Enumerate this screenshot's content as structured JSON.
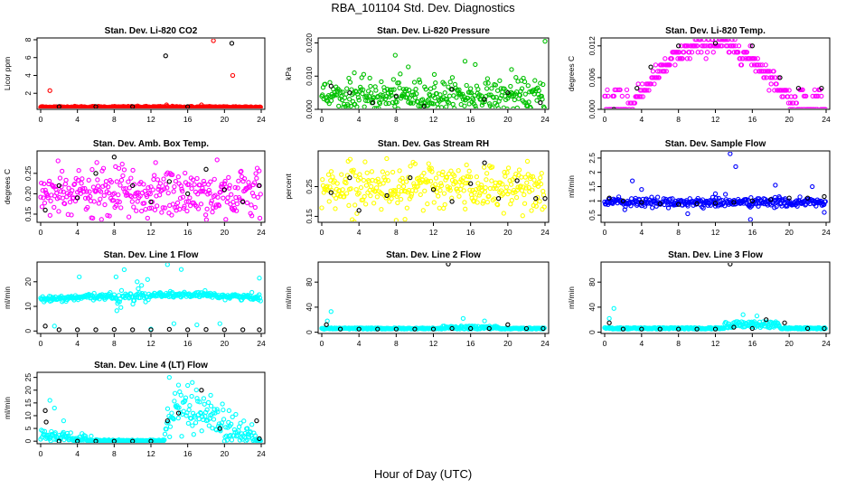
{
  "page": {
    "title": "RBA_101104  Std. Dev. Diagnostics",
    "xlabel": "Hour of Day (UTC)"
  },
  "chart_data": [
    {
      "type": "scatter",
      "title": "Stan. Dev. Li-820 CO2",
      "ylabel": "Licor ppm",
      "xlim": [
        0,
        24
      ],
      "xticks": [
        0,
        4,
        8,
        12,
        16,
        20,
        24
      ],
      "ylim": [
        0.2,
        8.2
      ],
      "yticks": [
        2,
        4,
        6,
        8
      ],
      "ytick_labels": [
        "2",
        "4",
        "6",
        "8"
      ],
      "main_color": "#ff0000",
      "noise": 0.0,
      "base": 0.45,
      "amp": 0.0,
      "series": [
        {
          "name": "",
          "color": "#ff0000",
          "values": [
            [
              1.0,
              2.3
            ],
            [
              18.8,
              7.9
            ],
            [
              20.9,
              4.0
            ],
            [
              13.7,
              0.7
            ],
            [
              17.5,
              0.7
            ]
          ]
        },
        {
          "name": "",
          "color": "#000000",
          "values": [
            [
              13.6,
              6.2
            ],
            [
              20.8,
              7.6
            ],
            [
              2.0,
              0.5
            ],
            [
              6.0,
              0.5
            ],
            [
              10.0,
              0.5
            ],
            [
              16.0,
              0.5
            ]
          ]
        }
      ]
    },
    {
      "type": "scatter",
      "title": "Stan. Dev. Li-820 Pressure",
      "ylabel": "kPa",
      "xlim": [
        0,
        24
      ],
      "xticks": [
        0,
        4,
        8,
        12,
        16,
        20,
        24
      ],
      "ylim": [
        0.0,
        0.0215
      ],
      "yticks": [
        0,
        0.01,
        0.02
      ],
      "ytick_labels": [
        "0.000",
        "0.010",
        "0.020"
      ],
      "main_color": "#00c000",
      "noise": 0.0022,
      "base": 0.0045,
      "amp": 0.0,
      "series": [
        {
          "name": "",
          "color": "#00c000",
          "values": [
            [
              24.0,
              0.0205
            ],
            [
              7.9,
              0.0163
            ],
            [
              15.4,
              0.0145
            ],
            [
              16.5,
              0.0135
            ],
            [
              9.3,
              0.0128
            ],
            [
              3.5,
              0.011
            ],
            [
              12.1,
              0.0105
            ],
            [
              20.4,
              0.012
            ]
          ]
        },
        {
          "name": "",
          "color": "#000000",
          "values": [
            [
              1.0,
              0.007
            ],
            [
              3.0,
              0.005
            ],
            [
              5.5,
              0.002
            ],
            [
              8.0,
              0.004
            ],
            [
              11.0,
              0.001
            ],
            [
              14.0,
              0.006
            ],
            [
              17.5,
              0.003
            ],
            [
              20.0,
              0.005
            ],
            [
              23.5,
              0.002
            ]
          ]
        }
      ]
    },
    {
      "type": "scatter",
      "title": "Stan. Dev. Li-820 Temp.",
      "ylabel": "degrees C",
      "xlim": [
        0,
        24
      ],
      "xticks": [
        0,
        4,
        8,
        12,
        16,
        20,
        24
      ],
      "ylim": [
        0.0,
        0.0135
      ],
      "yticks": [
        0,
        0.006,
        0.012
      ],
      "ytick_labels": [
        "0.000",
        "0.006",
        "0.012"
      ],
      "main_color": "#ff00ff",
      "noise": 0.0008,
      "base": 0.0,
      "amp": 0.0,
      "series": [
        {
          "name": "",
          "color": "#000000",
          "values": [
            [
              1.0,
              0.0
            ],
            [
              3.5,
              0.004
            ],
            [
              5.0,
              0.008
            ],
            [
              8.0,
              0.012
            ],
            [
              12.0,
              0.0125
            ],
            [
              16.0,
              0.012
            ],
            [
              19.0,
              0.006
            ],
            [
              21.0,
              0.004
            ],
            [
              23.5,
              0.004
            ]
          ]
        }
      ]
    },
    {
      "type": "scatter",
      "title": "Stan. Dev. Amb. Box Temp.",
      "ylabel": "degrees C",
      "xlim": [
        0,
        24
      ],
      "xticks": [
        0,
        4,
        8,
        12,
        16,
        20,
        24
      ],
      "ylim": [
        0.13,
        0.305
      ],
      "yticks": [
        0.15,
        0.2,
        0.25
      ],
      "ytick_labels": [
        "0.15",
        "0.20",
        "0.25"
      ],
      "main_color": "#ff00ff",
      "noise": 0.03,
      "base": 0.2,
      "amp": 0.0,
      "series": [
        {
          "name": "",
          "color": "#000000",
          "values": [
            [
              0.5,
              0.16
            ],
            [
              2.0,
              0.22
            ],
            [
              4.0,
              0.19
            ],
            [
              6.0,
              0.25
            ],
            [
              8.0,
              0.29
            ],
            [
              10.0,
              0.22
            ],
            [
              12.0,
              0.18
            ],
            [
              14.0,
              0.23
            ],
            [
              16.0,
              0.2
            ],
            [
              18.0,
              0.26
            ],
            [
              20.0,
              0.21
            ],
            [
              22.0,
              0.18
            ],
            [
              23.8,
              0.22
            ]
          ]
        }
      ]
    },
    {
      "type": "scatter",
      "title": "Stan. Dev. Gas Stream RH",
      "ylabel": "percent",
      "xlim": [
        0,
        24
      ],
      "xticks": [
        0,
        4,
        8,
        12,
        16,
        20,
        24
      ],
      "ylim": [
        0.13,
        0.37
      ],
      "yticks": [
        0.15,
        0.25
      ],
      "ytick_labels": [
        "0.15",
        "0.25"
      ],
      "main_color": "#ffff00",
      "noise": 0.04,
      "base": 0.25,
      "amp": 0.0,
      "series": [
        {
          "name": "",
          "color": "#000000",
          "values": [
            [
              1.0,
              0.23
            ],
            [
              3.0,
              0.28
            ],
            [
              4.0,
              0.17
            ],
            [
              7.0,
              0.22
            ],
            [
              9.5,
              0.28
            ],
            [
              12.0,
              0.24
            ],
            [
              14.0,
              0.2
            ],
            [
              16.0,
              0.26
            ],
            [
              17.5,
              0.33
            ],
            [
              19.0,
              0.21
            ],
            [
              21.0,
              0.27
            ],
            [
              23.0,
              0.21
            ],
            [
              24.0,
              0.21
            ]
          ]
        }
      ]
    },
    {
      "type": "scatter",
      "title": "Stan. Dev. Sample Flow",
      "ylabel": "ml/min",
      "xlim": [
        0,
        24
      ],
      "xticks": [
        0,
        4,
        8,
        12,
        16,
        20,
        24
      ],
      "ylim": [
        0.25,
        2.75
      ],
      "yticks": [
        0.5,
        1.0,
        1.5,
        2.0,
        2.5
      ],
      "ytick_labels": [
        "0.5",
        "1",
        "1.5",
        "2",
        "2.5"
      ],
      "main_color": "#0000ff",
      "noise": 0.08,
      "base": 0.95,
      "amp": 0.0,
      "series": [
        {
          "name": "",
          "color": "#0000ff",
          "values": [
            [
              3.0,
              1.7
            ],
            [
              13.6,
              2.65
            ],
            [
              14.2,
              2.2
            ],
            [
              15.8,
              0.35
            ],
            [
              22.5,
              1.5
            ],
            [
              4.0,
              1.4
            ],
            [
              12.0,
              1.25
            ],
            [
              18.5,
              1.55
            ],
            [
              23.8,
              0.6
            ],
            [
              9.0,
              0.55
            ]
          ]
        },
        {
          "name": "",
          "color": "#000000",
          "values": [
            [
              0.5,
              1.1
            ],
            [
              2.0,
              1.0
            ],
            [
              4.0,
              0.95
            ],
            [
              6.0,
              0.9
            ],
            [
              8.0,
              0.88
            ],
            [
              10.0,
              0.9
            ],
            [
              12.0,
              0.92
            ],
            [
              14.0,
              0.95
            ],
            [
              16.0,
              1.0
            ],
            [
              18.0,
              1.05
            ],
            [
              20.0,
              1.1
            ],
            [
              22.0,
              1.1
            ],
            [
              23.8,
              1.15
            ]
          ]
        }
      ]
    },
    {
      "type": "scatter",
      "title": "Stan. Dev. Line 1 Flow",
      "ylabel": "ml/min",
      "xlim": [
        0,
        24
      ],
      "xticks": [
        0,
        4,
        8,
        12,
        16,
        20,
        24
      ],
      "ylim": [
        -1,
        28
      ],
      "yticks": [
        0,
        10,
        20
      ],
      "ytick_labels": [
        "0",
        "10",
        "20"
      ],
      "main_color": "#00ffff",
      "noise": 0.8,
      "base": 13.5,
      "amp": 1.5,
      "series": [
        {
          "name": "",
          "color": "#00ffff",
          "values": [
            [
              8.2,
              22
            ],
            [
              13.8,
              27
            ],
            [
              15.3,
              25
            ],
            [
              4.2,
              22
            ],
            [
              10.5,
              20
            ],
            [
              23.8,
              21.5
            ],
            [
              1.5,
              2
            ],
            [
              12.0,
              0.8
            ],
            [
              14.5,
              3
            ],
            [
              17.0,
              2.5
            ],
            [
              19.5,
              3
            ]
          ]
        },
        {
          "name": "",
          "color": "#000000",
          "values": [
            [
              0.5,
              2.0
            ],
            [
              2.0,
              0.5
            ],
            [
              4.0,
              0.5
            ],
            [
              6.0,
              0.5
            ],
            [
              8.0,
              0.6
            ],
            [
              10.0,
              0.5
            ],
            [
              12.0,
              0.5
            ],
            [
              14.0,
              0.7
            ],
            [
              16.0,
              0.5
            ],
            [
              18.0,
              0.6
            ],
            [
              20.0,
              0.5
            ],
            [
              22.0,
              0.5
            ],
            [
              23.8,
              0.5
            ]
          ]
        }
      ]
    },
    {
      "type": "scatter",
      "title": "Stan. Dev. Line 2 Flow",
      "ylabel": "ml/min",
      "xlim": [
        0,
        24
      ],
      "xticks": [
        0,
        4,
        8,
        12,
        16,
        20,
        24
      ],
      "ylim": [
        -2,
        112
      ],
      "yticks": [
        0,
        40,
        80
      ],
      "ytick_labels": [
        "0",
        "40",
        "80"
      ],
      "main_color": "#00ffff",
      "noise": 1.5,
      "base": 5,
      "amp": 4,
      "series": [
        {
          "name": "",
          "color": "#00ffff",
          "values": [
            [
              1.0,
              33
            ],
            [
              0.6,
              18
            ],
            [
              15.2,
              22
            ],
            [
              17.5,
              18
            ]
          ]
        },
        {
          "name": "",
          "color": "#000000",
          "values": [
            [
              13.6,
              109
            ],
            [
              0.5,
              12
            ],
            [
              2.0,
              5
            ],
            [
              4.0,
              5
            ],
            [
              6.0,
              5
            ],
            [
              8.0,
              5
            ],
            [
              10.0,
              5
            ],
            [
              12.0,
              5
            ],
            [
              14.0,
              6
            ],
            [
              16.0,
              6
            ],
            [
              18.0,
              6
            ],
            [
              20.0,
              12
            ],
            [
              22.0,
              6
            ],
            [
              23.8,
              6
            ]
          ]
        }
      ]
    },
    {
      "type": "scatter",
      "title": "Stan. Dev. Line 3 Flow",
      "ylabel": "ml/min",
      "xlim": [
        0,
        24
      ],
      "xticks": [
        0,
        4,
        8,
        12,
        16,
        20,
        24
      ],
      "ylim": [
        -2,
        112
      ],
      "yticks": [
        0,
        40,
        80
      ],
      "ytick_labels": [
        "0",
        "40",
        "80"
      ],
      "main_color": "#00ffff",
      "noise": 1.5,
      "base": 5,
      "amp": 7,
      "series": [
        {
          "name": "",
          "color": "#00ffff",
          "values": [
            [
              1.0,
              38
            ],
            [
              0.5,
              22
            ],
            [
              15.0,
              28
            ],
            [
              16.5,
              26
            ]
          ]
        },
        {
          "name": "",
          "color": "#000000",
          "values": [
            [
              13.6,
              109
            ],
            [
              0.5,
              15
            ],
            [
              2.0,
              5
            ],
            [
              4.0,
              5
            ],
            [
              6.0,
              5
            ],
            [
              8.0,
              5
            ],
            [
              10.0,
              5
            ],
            [
              12.0,
              5
            ],
            [
              14.0,
              8
            ],
            [
              16.0,
              6
            ],
            [
              17.5,
              20
            ],
            [
              19.5,
              15
            ],
            [
              22.0,
              6
            ],
            [
              23.8,
              6
            ]
          ]
        }
      ]
    },
    {
      "type": "scatter",
      "title": "Stan. Dev. Line 4 (LT) Flow",
      "ylabel": "ml/min",
      "xlim": [
        0,
        24
      ],
      "xticks": [
        0,
        4,
        8,
        12,
        16,
        20,
        24
      ],
      "ylim": [
        -1,
        27
      ],
      "yticks": [
        0,
        5,
        10,
        15,
        20,
        25
      ],
      "ytick_labels": [
        "0",
        "5",
        "10",
        "15",
        "20",
        "25"
      ],
      "main_color": "#00ffff",
      "noise": 1.5,
      "base": 0.3,
      "amp": 11,
      "series": [
        {
          "name": "",
          "color": "#00ffff",
          "values": [
            [
              1.0,
              16
            ],
            [
              1.5,
              13
            ],
            [
              2.5,
              8
            ],
            [
              4.5,
              3
            ],
            [
              5.5,
              2
            ],
            [
              14.0,
              25
            ],
            [
              15.0,
              22
            ],
            [
              16.5,
              23
            ],
            [
              18.5,
              18
            ],
            [
              20.5,
              12
            ],
            [
              22.5,
              5
            ]
          ]
        },
        {
          "name": "",
          "color": "#000000",
          "values": [
            [
              0.5,
              12
            ],
            [
              0.6,
              7.5
            ],
            [
              2.0,
              0
            ],
            [
              4.0,
              0
            ],
            [
              6.0,
              0
            ],
            [
              8.0,
              0
            ],
            [
              10.0,
              0
            ],
            [
              12.0,
              0
            ],
            [
              13.8,
              8
            ],
            [
              15.0,
              11
            ],
            [
              17.5,
              20
            ],
            [
              19.5,
              5
            ],
            [
              23.5,
              8
            ],
            [
              23.8,
              1
            ]
          ]
        }
      ]
    }
  ]
}
